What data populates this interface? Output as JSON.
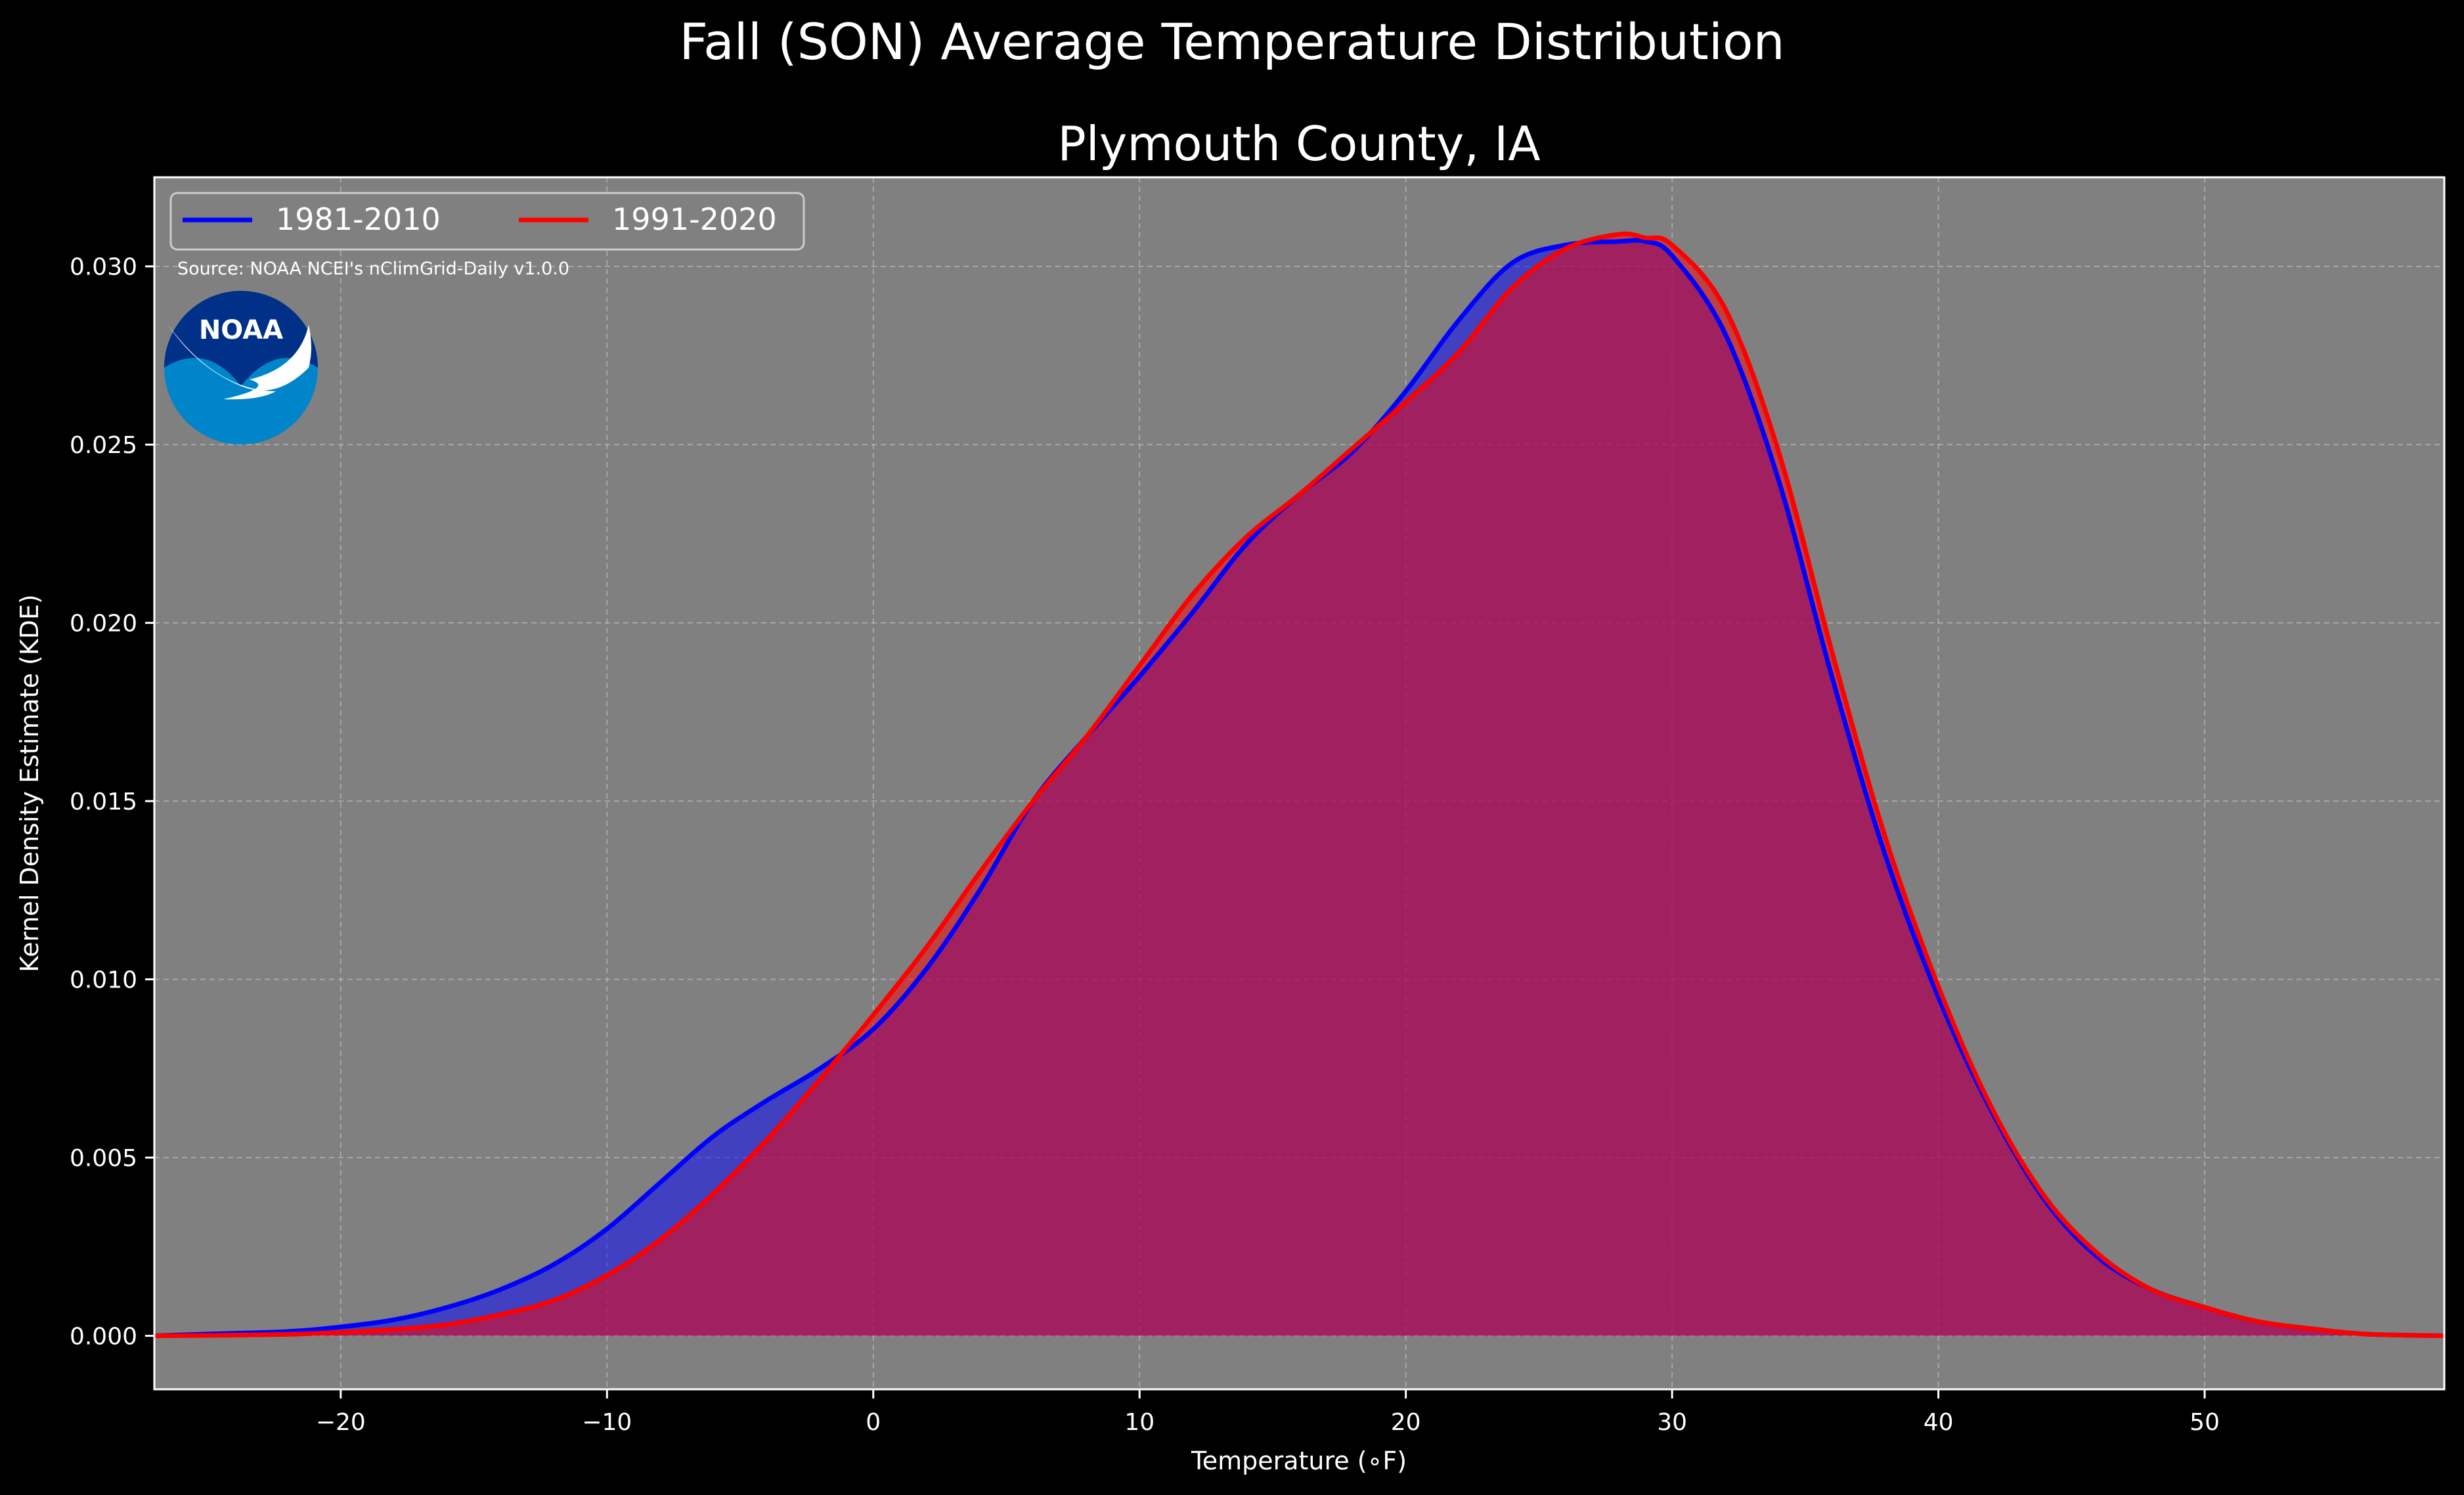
{
  "figure": {
    "suptitle": "Fall (SON) Average Temperature Distribution",
    "background": "#000000",
    "axes_background": "#808080",
    "text_color": "#ffffff",
    "grid_color": "#c8c8c8"
  },
  "source_note": "Source: NOAA NCEI's nClimGrid-Daily v1.0.0",
  "logo": {
    "name": "noaa-logo",
    "text": "NOAA",
    "colors": {
      "outer": "#0085ca",
      "inner": "#003087",
      "bird": "#ffffff"
    }
  },
  "chart_data": {
    "type": "area",
    "title": "Plymouth County, IA",
    "xlabel": "Temperature (∘F)",
    "ylabel": "Kernel Density Estimate (KDE)",
    "xlim": [
      -27,
      59
    ],
    "ylim": [
      -0.0015,
      0.0325
    ],
    "xticks": [
      -20,
      -10,
      0,
      10,
      20,
      30,
      40,
      50
    ],
    "xtick_labels": [
      "−20",
      "−10",
      "0",
      "10",
      "20",
      "30",
      "40",
      "50"
    ],
    "yticks": [
      0.0,
      0.005,
      0.01,
      0.015,
      0.02,
      0.025,
      0.03
    ],
    "ytick_labels": [
      "0.000",
      "0.005",
      "0.010",
      "0.015",
      "0.020",
      "0.025",
      "0.030"
    ],
    "grid": true,
    "legend_position": "top-left",
    "series": [
      {
        "name": "1981-2010",
        "color": "#0000ff",
        "fill": "rgba(0,0,255,0.5)",
        "x": [
          -27,
          -25,
          -22,
          -20,
          -18,
          -16,
          -14,
          -12,
          -10,
          -8,
          -6,
          -4,
          -2,
          0,
          2,
          4,
          6,
          8,
          10,
          12,
          14,
          16,
          18,
          20,
          22,
          24,
          26,
          28,
          29,
          30,
          32,
          34,
          36,
          38,
          40,
          42,
          44,
          46,
          48,
          50,
          52,
          54,
          56,
          59
        ],
        "y": [
          0.0,
          5e-05,
          0.00012,
          0.00025,
          0.00045,
          0.0008,
          0.0013,
          0.002,
          0.003,
          0.0043,
          0.0056,
          0.0066,
          0.0075,
          0.0086,
          0.0103,
          0.0125,
          0.015,
          0.0168,
          0.0185,
          0.0203,
          0.0222,
          0.0236,
          0.0248,
          0.0265,
          0.0285,
          0.0301,
          0.0306,
          0.0307,
          0.0307,
          0.0303,
          0.0281,
          0.024,
          0.0185,
          0.0135,
          0.0095,
          0.0063,
          0.0038,
          0.0022,
          0.0013,
          0.0008,
          0.0004,
          0.0002,
          5e-05,
          0.0
        ]
      },
      {
        "name": "1991-2020",
        "color": "#ff0000",
        "fill": "rgba(255,0,0,0.5)",
        "x": [
          -27,
          -25,
          -22,
          -20,
          -18,
          -16,
          -14,
          -12,
          -10,
          -8,
          -6,
          -4,
          -2,
          0,
          2,
          4,
          6,
          8,
          10,
          12,
          14,
          16,
          18,
          20,
          22,
          24,
          26,
          28,
          29,
          30,
          32,
          34,
          36,
          38,
          40,
          42,
          44,
          46,
          48,
          50,
          52,
          54,
          56,
          59
        ],
        "y": [
          0.0,
          1e-05,
          4e-05,
          0.0001,
          0.00018,
          0.00032,
          0.0006,
          0.001,
          0.0017,
          0.0027,
          0.004,
          0.0055,
          0.0072,
          0.009,
          0.0109,
          0.013,
          0.015,
          0.0168,
          0.0188,
          0.0208,
          0.0224,
          0.0236,
          0.0249,
          0.0262,
          0.0276,
          0.0294,
          0.0305,
          0.0309,
          0.0308,
          0.0306,
          0.0288,
          0.0248,
          0.0192,
          0.014,
          0.0098,
          0.0064,
          0.0039,
          0.0023,
          0.0013,
          0.0008,
          0.0004,
          0.0002,
          5e-05,
          0.0
        ]
      }
    ]
  }
}
